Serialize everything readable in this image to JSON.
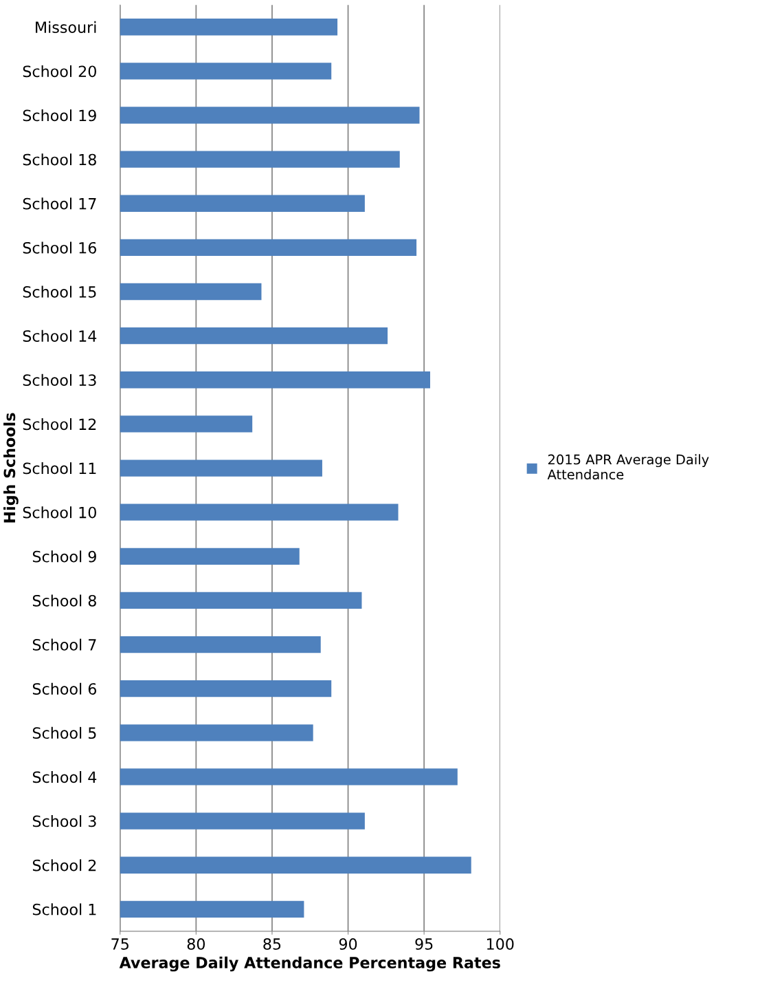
{
  "chart_data": {
    "type": "bar",
    "orientation": "horizontal",
    "categories": [
      "Missouri",
      "School 20",
      "School 19",
      "School 18",
      "School 17",
      "School 16",
      "School 15",
      "School 14",
      "School 13",
      "School 12",
      "School 11",
      "School 10",
      "School 9",
      "School 8",
      "School 7",
      "School 6",
      "School 5",
      "School 4",
      "School 3",
      "School 2",
      "School 1"
    ],
    "series": [
      {
        "name": "2015 APR Average Daily Attendance",
        "color": "#4f81bd",
        "values": [
          89.3,
          88.9,
          94.7,
          93.4,
          91.1,
          94.5,
          84.3,
          92.6,
          95.4,
          83.7,
          88.3,
          93.3,
          86.8,
          90.9,
          88.2,
          88.9,
          87.7,
          97.2,
          91.1,
          98.1,
          87.1
        ]
      }
    ],
    "xlim": [
      75,
      100
    ],
    "xticks": [
      75,
      80,
      85,
      90,
      95,
      100
    ],
    "xlabel": "Average Daily Attendance Percentage Rates",
    "ylabel": "High Schools",
    "grid": "x",
    "legend": "right"
  }
}
